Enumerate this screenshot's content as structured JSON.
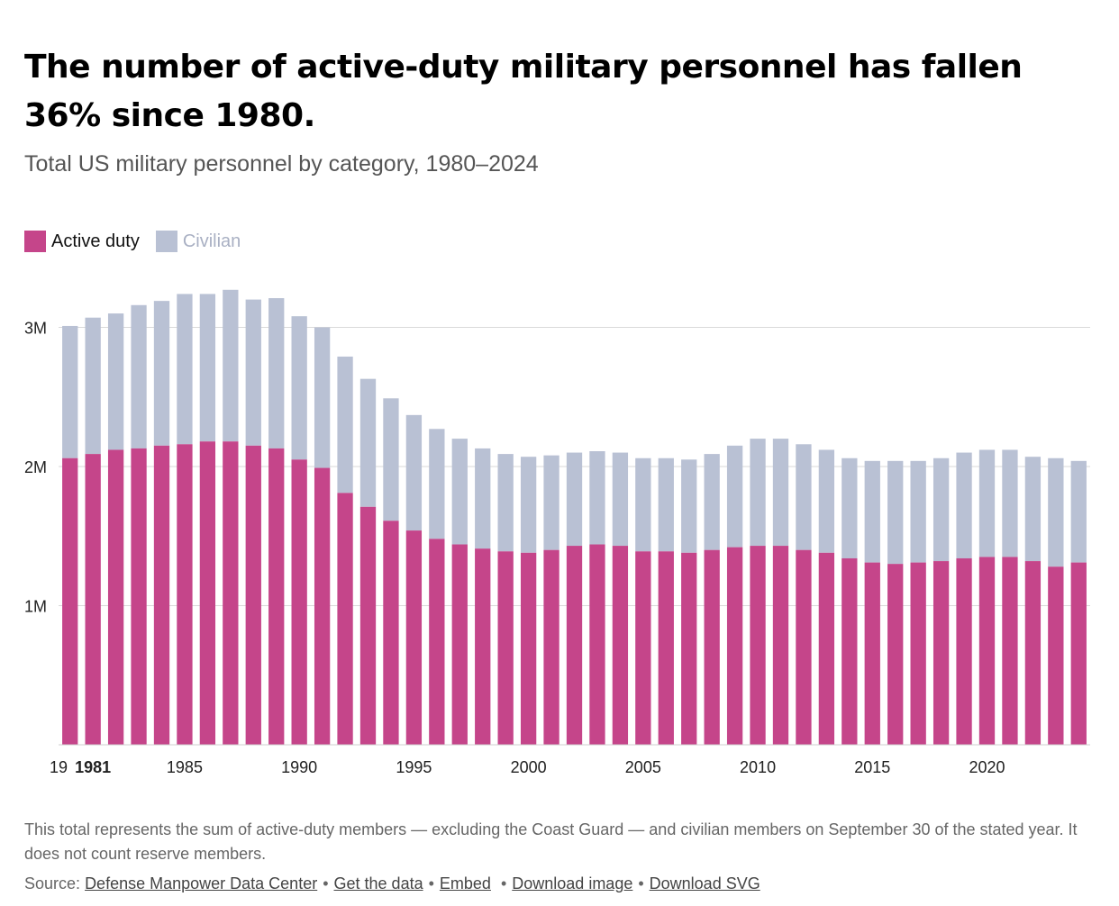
{
  "title": "The number of active-duty military personnel has fallen 36% since 1980.",
  "subtitle": "Total US military personnel by category, 1980–2024",
  "legend": {
    "active_label": "Active duty",
    "civilian_label": "Civilian"
  },
  "colors": {
    "active": "#c5458a",
    "civilian": "#b9c1d4",
    "grid": "#d9d9d9"
  },
  "note": "This total represents the sum of active-duty members — excluding the Coast Guard — and civilian members on September 30 of the stated year. It does not count reserve members.",
  "source": {
    "prefix": "Source:",
    "links": [
      "Defense Manpower Data Center",
      "Get the data",
      "Embed",
      "Download image",
      "Download SVG"
    ]
  },
  "chart_data": {
    "type": "bar",
    "stacked": true,
    "categories": [
      1980,
      1981,
      1982,
      1983,
      1984,
      1985,
      1986,
      1987,
      1988,
      1989,
      1990,
      1991,
      1992,
      1993,
      1994,
      1995,
      1996,
      1997,
      1998,
      1999,
      2000,
      2001,
      2002,
      2003,
      2004,
      2005,
      2006,
      2007,
      2008,
      2009,
      2010,
      2011,
      2012,
      2013,
      2014,
      2015,
      2016,
      2017,
      2018,
      2019,
      2020,
      2021,
      2022,
      2023,
      2024
    ],
    "series": [
      {
        "name": "Active duty",
        "values": [
          2.06,
          2.09,
          2.12,
          2.13,
          2.15,
          2.16,
          2.18,
          2.18,
          2.15,
          2.13,
          2.05,
          1.99,
          1.81,
          1.71,
          1.61,
          1.54,
          1.48,
          1.44,
          1.41,
          1.39,
          1.38,
          1.4,
          1.43,
          1.44,
          1.43,
          1.39,
          1.39,
          1.38,
          1.4,
          1.42,
          1.43,
          1.43,
          1.4,
          1.38,
          1.34,
          1.31,
          1.3,
          1.31,
          1.32,
          1.34,
          1.35,
          1.35,
          1.32,
          1.28,
          1.31
        ]
      },
      {
        "name": "Civilian",
        "values": [
          0.95,
          0.98,
          0.98,
          1.03,
          1.04,
          1.08,
          1.06,
          1.09,
          1.05,
          1.08,
          1.03,
          1.01,
          0.98,
          0.92,
          0.88,
          0.83,
          0.79,
          0.76,
          0.72,
          0.7,
          0.69,
          0.68,
          0.67,
          0.67,
          0.67,
          0.67,
          0.67,
          0.67,
          0.69,
          0.73,
          0.77,
          0.77,
          0.76,
          0.74,
          0.72,
          0.73,
          0.74,
          0.73,
          0.74,
          0.76,
          0.77,
          0.77,
          0.75,
          0.78,
          0.73
        ]
      }
    ],
    "yticks": [
      {
        "value": 1,
        "label": "1M"
      },
      {
        "value": 2,
        "label": "2M"
      },
      {
        "value": 3,
        "label": "3M"
      }
    ],
    "ylim": [
      0,
      3.3
    ],
    "xticks": [
      {
        "year": 1980,
        "label": "19"
      },
      {
        "year": 1981,
        "label": "1981"
      },
      {
        "year": 1985,
        "label": "1985"
      },
      {
        "year": 1990,
        "label": "1990"
      },
      {
        "year": 1995,
        "label": "1995"
      },
      {
        "year": 2000,
        "label": "2000"
      },
      {
        "year": 2005,
        "label": "2005"
      },
      {
        "year": 2010,
        "label": "2010"
      },
      {
        "year": 2015,
        "label": "2015"
      },
      {
        "year": 2020,
        "label": "2020"
      }
    ],
    "highlight_year": 1981,
    "grid": true,
    "legend_position": "top-left"
  }
}
